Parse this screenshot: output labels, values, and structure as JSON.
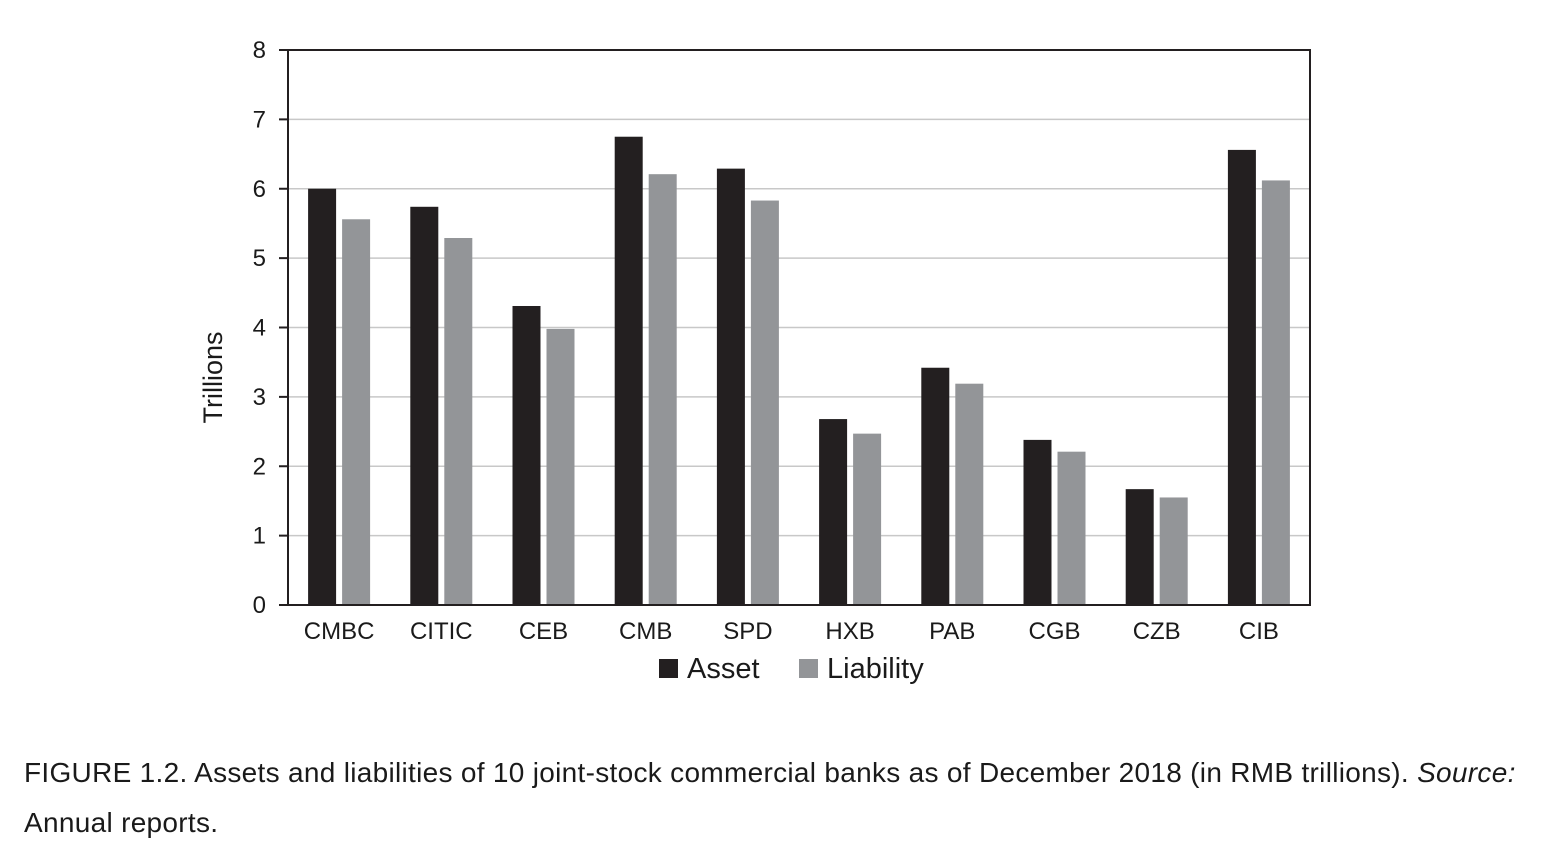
{
  "chart_data": {
    "type": "bar",
    "categories": [
      "CMBC",
      "CITIC",
      "CEB",
      "CMB",
      "SPD",
      "HXB",
      "PAB",
      "CGB",
      "CZB",
      "CIB"
    ],
    "series": [
      {
        "name": "Asset",
        "color": "#231f20",
        "values": [
          6.0,
          5.74,
          4.31,
          6.75,
          6.29,
          2.68,
          3.42,
          2.38,
          1.67,
          6.56
        ]
      },
      {
        "name": "Liability",
        "color": "#939598",
        "values": [
          5.56,
          5.29,
          3.98,
          6.21,
          5.83,
          2.47,
          3.19,
          2.21,
          1.55,
          6.12
        ]
      }
    ],
    "ylabel": "Trillions",
    "xlabel": "",
    "ylim": [
      0,
      8
    ],
    "yticks": [
      "0",
      "1",
      "2",
      "3",
      "4",
      "5",
      "6",
      "7",
      "8"
    ],
    "grid": true,
    "legend_position": "bottom"
  },
  "caption": {
    "label": "FIGURE 1.2.",
    "text": " Assets and liabilities of 10 joint-stock commercial banks as of December 2018 (in RMB trillions). ",
    "source_label": "Source:",
    "source_text": " Annual reports."
  }
}
